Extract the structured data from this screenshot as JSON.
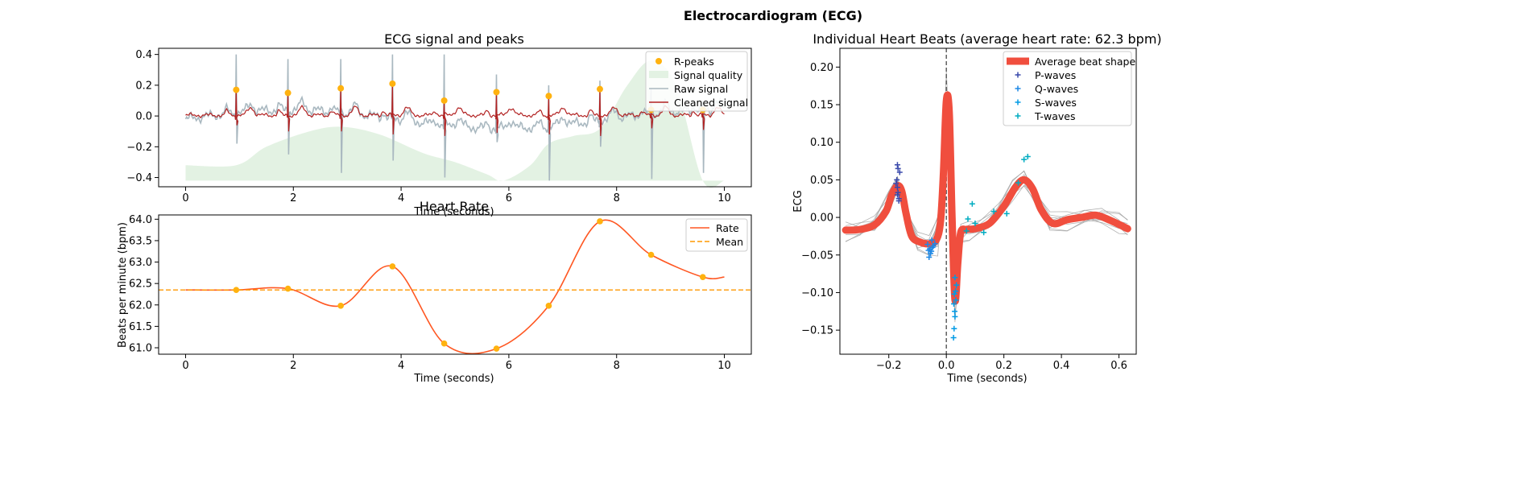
{
  "figure": {
    "suptitle": "Electrocardiogram (ECG)"
  },
  "colors": {
    "raw": "#a9b8c0",
    "cleaned": "#b22222",
    "rpeak": "#ffb20f",
    "quality_fill": "#e3f2e3",
    "rate": "#ff5722",
    "mean": "#ff9800",
    "avg_beat": "#f04e3e",
    "p_waves": "#3949ab",
    "q_waves": "#1e88e5",
    "s_waves": "#039be5",
    "t_waves": "#00acc1"
  },
  "chart_data": [
    {
      "id": "ecg",
      "type": "line",
      "title": "ECG signal and peaks",
      "xlabel": "Time (seconds)",
      "ylabel": "",
      "xlim": [
        -0.5,
        10.5
      ],
      "ylim": [
        -0.46,
        0.44
      ],
      "xticks": [
        0,
        2,
        4,
        6,
        8,
        10
      ],
      "yticks": [
        -0.4,
        -0.2,
        0.0,
        0.2,
        0.4
      ],
      "grid": false,
      "legend": {
        "position": "upper right",
        "entries": [
          "R-peaks",
          "Signal quality",
          "Raw signal",
          "Cleaned signal"
        ]
      },
      "r_peaks": {
        "name": "R-peaks",
        "x": [
          0.94,
          1.9,
          2.88,
          3.84,
          4.8,
          5.77,
          6.74,
          7.69,
          8.64,
          9.6
        ],
        "y": [
          0.17,
          0.15,
          0.18,
          0.21,
          0.1,
          0.155,
          0.13,
          0.175,
          0.04,
          0.04
        ]
      },
      "signal_quality": {
        "name": "Signal quality",
        "x": [
          0,
          0.94,
          1.5,
          2.3,
          2.9,
          3.6,
          4.4,
          5.0,
          5.6,
          5.9,
          6.4,
          6.74,
          7.2,
          7.7,
          8.2,
          8.64,
          9.1,
          9.6,
          10.0
        ],
        "y": [
          -0.32,
          -0.32,
          -0.2,
          -0.1,
          -0.07,
          -0.12,
          -0.24,
          -0.3,
          -0.38,
          -0.42,
          -0.32,
          -0.18,
          -0.13,
          -0.08,
          0.2,
          0.36,
          0.2,
          -0.42,
          -0.42
        ]
      },
      "raw_signal": {
        "name": "Raw signal"
      },
      "cleaned_signal": {
        "name": "Cleaned signal"
      }
    },
    {
      "id": "rate",
      "type": "line",
      "title": "Heart Rate",
      "xlabel": "Time (seconds)",
      "ylabel": "Beats per minute (bpm)",
      "xlim": [
        -0.5,
        10.5
      ],
      "ylim": [
        60.85,
        64.1
      ],
      "xticks": [
        0,
        2,
        4,
        6,
        8,
        10
      ],
      "yticks": [
        61.0,
        61.5,
        62.0,
        62.5,
        63.0,
        63.5,
        64.0
      ],
      "grid": false,
      "legend": {
        "position": "upper right",
        "entries": [
          "Rate",
          "Mean"
        ]
      },
      "series": [
        {
          "name": "Rate",
          "x": [
            0,
            0.94,
            1.9,
            2.88,
            3.84,
            4.8,
            5.77,
            6.74,
            7.69,
            8.64,
            9.6,
            10.0
          ],
          "y": [
            62.35,
            62.35,
            62.38,
            61.98,
            62.9,
            61.1,
            60.98,
            61.98,
            63.95,
            63.17,
            62.65,
            62.65
          ]
        }
      ],
      "peaks": {
        "x": [
          0.94,
          1.9,
          2.88,
          3.84,
          4.8,
          5.77,
          6.74,
          7.69,
          8.64,
          9.6
        ],
        "y": [
          62.35,
          62.38,
          61.98,
          62.9,
          61.1,
          60.98,
          61.98,
          63.95,
          63.17,
          62.65
        ]
      },
      "mean": {
        "name": "Mean",
        "value": 62.35
      }
    },
    {
      "id": "beats",
      "type": "line",
      "title": "Individual Heart Beats (average heart rate: 62.3 bpm)",
      "xlabel": "Time (seconds)",
      "ylabel": "ECG",
      "xlim": [
        -0.37,
        0.66
      ],
      "ylim": [
        -0.182,
        0.225
      ],
      "xticks": [
        -0.2,
        0.0,
        0.2,
        0.4,
        0.6
      ],
      "yticks": [
        -0.15,
        -0.1,
        -0.05,
        0.0,
        0.05,
        0.1,
        0.15,
        0.2
      ],
      "grid": false,
      "legend": {
        "position": "upper right",
        "entries": [
          "Average beat shape",
          "P-waves",
          "Q-waves",
          "S-waves",
          "T-waves"
        ]
      },
      "average_beat": {
        "name": "Average beat shape",
        "x": [
          -0.35,
          -0.3,
          -0.25,
          -0.21,
          -0.19,
          -0.17,
          -0.155,
          -0.14,
          -0.12,
          -0.09,
          -0.06,
          -0.035,
          -0.02,
          -0.01,
          0.0,
          0.01,
          0.02,
          0.03,
          0.04,
          0.05,
          0.07,
          0.1,
          0.15,
          0.2,
          0.24,
          0.27,
          0.3,
          0.33,
          0.37,
          0.42,
          0.47,
          0.52,
          0.57,
          0.63
        ],
        "y": [
          -0.017,
          -0.016,
          -0.01,
          0.008,
          0.03,
          0.042,
          0.035,
          0.005,
          -0.025,
          -0.033,
          -0.035,
          -0.03,
          -0.005,
          0.06,
          0.155,
          0.14,
          0.0,
          -0.11,
          -0.06,
          -0.02,
          -0.016,
          -0.015,
          -0.008,
          0.015,
          0.04,
          0.05,
          0.038,
          0.01,
          -0.008,
          -0.003,
          0.0,
          0.003,
          -0.004,
          -0.015
        ]
      },
      "individual_beats": {
        "count": 10,
        "x": [
          -0.35,
          -0.3,
          -0.25,
          -0.2,
          -0.17,
          -0.14,
          -0.1,
          -0.06,
          -0.03,
          -0.01,
          0.0,
          0.02,
          0.03,
          0.05,
          0.08,
          0.12,
          0.18,
          0.23,
          0.27,
          0.31,
          0.36,
          0.42,
          0.48,
          0.54,
          0.6,
          0.63
        ],
        "offsets": [
          0.005,
          -0.007,
          0.012,
          -0.012,
          0.002,
          0.016,
          -0.004,
          0.009,
          -0.015,
          0.007
        ]
      },
      "markers": [
        {
          "name": "P-waves",
          "x": [
            -0.17,
            -0.168,
            -0.17,
            -0.165,
            -0.162,
            -0.175,
            -0.172,
            -0.168,
            -0.17,
            -0.165
          ],
          "y": [
            0.07,
            0.065,
            0.03,
            0.025,
            0.06,
            0.045,
            0.05,
            0.033,
            0.04,
            0.022
          ]
        },
        {
          "name": "Q-waves",
          "x": [
            -0.06,
            -0.055,
            -0.052,
            -0.045,
            -0.065,
            -0.05,
            -0.058,
            -0.04,
            -0.048,
            -0.062
          ],
          "y": [
            -0.053,
            -0.048,
            -0.045,
            -0.038,
            -0.036,
            -0.03,
            -0.042,
            -0.035,
            -0.04,
            -0.044
          ]
        },
        {
          "name": "S-waves",
          "x": [
            0.025,
            0.027,
            0.03,
            0.033,
            0.028,
            0.035,
            0.03,
            0.032,
            0.026,
            0.029
          ],
          "y": [
            -0.16,
            -0.148,
            -0.132,
            -0.11,
            -0.102,
            -0.09,
            -0.08,
            -0.098,
            -0.115,
            -0.125
          ]
        },
        {
          "name": "T-waves",
          "x": [
            0.27,
            0.283,
            0.25,
            0.165,
            0.13,
            0.1,
            0.09,
            0.075,
            0.07,
            0.21
          ],
          "y": [
            0.077,
            0.081,
            0.046,
            0.008,
            -0.02,
            -0.008,
            0.018,
            -0.002,
            -0.018,
            0.005
          ]
        }
      ]
    }
  ]
}
